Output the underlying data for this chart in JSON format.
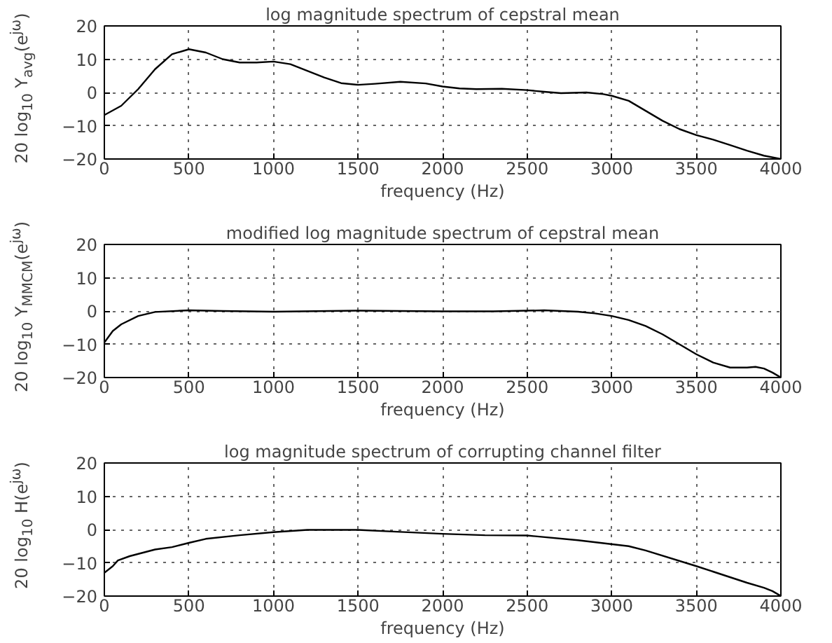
{
  "chart_data": [
    {
      "type": "line",
      "title": "log magnitude spectrum of cepstral mean",
      "xlabel": "frequency (Hz)",
      "ylabel": "20 log$_{10}$ Y$_{avg}$(e$^{jω}$)",
      "xlim": [
        0,
        4000
      ],
      "ylim": [
        -20,
        20
      ],
      "xticks": [
        0,
        500,
        1000,
        1500,
        2000,
        2500,
        3000,
        3500,
        4000
      ],
      "yticks": [
        -20,
        -10,
        0,
        10,
        20
      ],
      "grid": true,
      "series": [
        {
          "color": "#000000",
          "x": [
            0,
            100,
            200,
            300,
            400,
            500,
            600,
            700,
            800,
            900,
            1000,
            1100,
            1200,
            1300,
            1400,
            1500,
            1600,
            1750,
            1900,
            2000,
            2100,
            2200,
            2350,
            2500,
            2600,
            2700,
            2850,
            2950,
            3000,
            3100,
            3200,
            3300,
            3400,
            3500,
            3600,
            3700,
            3800,
            3900,
            4000
          ],
          "values": [
            -6.8,
            -4,
            1,
            7,
            11.5,
            13,
            12,
            10,
            9,
            9,
            9.3,
            8.5,
            6.5,
            4.5,
            2.8,
            2.3,
            2.6,
            3.2,
            2.7,
            1.8,
            1.2,
            1,
            1.1,
            0.7,
            0.2,
            -0.2,
            0,
            -0.5,
            -1,
            -2.5,
            -5.5,
            -8.5,
            -11,
            -12.8,
            -14.2,
            -15.8,
            -17.5,
            -19,
            -20
          ]
        }
      ]
    },
    {
      "type": "line",
      "title": "modified log magnitude spectrum of cepstral mean",
      "xlabel": "frequency (Hz)",
      "ylabel": "20 log$_{10}$ Y$_{MMCM}$(e$^{jω}$)",
      "xlim": [
        0,
        4000
      ],
      "ylim": [
        -20,
        20
      ],
      "xticks": [
        0,
        500,
        1000,
        1500,
        2000,
        2500,
        3000,
        3500,
        4000
      ],
      "yticks": [
        -20,
        -10,
        0,
        10,
        20
      ],
      "grid": true,
      "series": [
        {
          "color": "#000000",
          "x": [
            0,
            50,
            100,
            200,
            300,
            500,
            700,
            1000,
            1500,
            2000,
            2300,
            2600,
            2800,
            2900,
            3000,
            3100,
            3200,
            3300,
            3400,
            3500,
            3600,
            3700,
            3800,
            3850,
            3900,
            3950,
            4000
          ],
          "values": [
            -9.5,
            -6,
            -4,
            -1.5,
            -0.3,
            0.2,
            0,
            -0.2,
            0.1,
            -0.1,
            -0.1,
            0.2,
            -0.2,
            -0.7,
            -1.5,
            -2.7,
            -4.5,
            -7,
            -10,
            -13,
            -15.5,
            -17,
            -17,
            -16.8,
            -17.3,
            -18.5,
            -20
          ]
        }
      ]
    },
    {
      "type": "line",
      "title": "log magnitude spectrum of corrupting channel filter",
      "xlabel": "frequency (Hz)",
      "ylabel": "20 log$_{10}$ H(e$^{jω}$)",
      "xlim": [
        0,
        4000
      ],
      "ylim": [
        -20,
        20
      ],
      "xticks": [
        0,
        500,
        1000,
        1500,
        2000,
        2500,
        3000,
        3500,
        4000
      ],
      "yticks": [
        -20,
        -10,
        0,
        10,
        20
      ],
      "grid": true,
      "series": [
        {
          "color": "#000000",
          "x": [
            0,
            50,
            80,
            150,
            300,
            400,
            500,
            600,
            800,
            1000,
            1200,
            1500,
            1750,
            2000,
            2250,
            2500,
            2800,
            3100,
            3200,
            3500,
            3800,
            3900,
            3950,
            4000
          ],
          "values": [
            -13,
            -11,
            -9.3,
            -8,
            -6,
            -5.3,
            -4,
            -2.8,
            -1.7,
            -0.8,
            -0.1,
            -0.1,
            -0.7,
            -1.3,
            -1.7,
            -1.8,
            -3.2,
            -5,
            -6.3,
            -11,
            -16,
            -17.5,
            -18.5,
            -20
          ]
        }
      ]
    }
  ]
}
